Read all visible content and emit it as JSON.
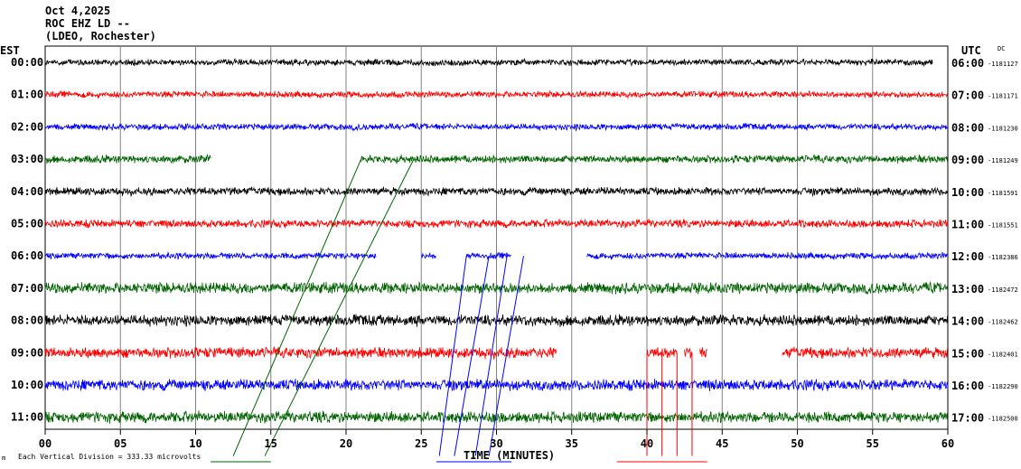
{
  "header": {
    "date": "Oct 4,2025",
    "station": "ROC EHZ LD --",
    "network": "(LDEO, Rochester)"
  },
  "labels": {
    "left_zone": "EST",
    "right_zone": "UTC",
    "dc": "DC",
    "time_axis": "TIME (MINUTES)",
    "scale_note": "Each Vertical Division =  333.33 microvolts"
  },
  "colors": {
    "black": "#000000",
    "red": "#ff0000",
    "blue": "#0000ff",
    "green": "#006400",
    "grid": "#808080"
  },
  "chart_data": {
    "type": "line",
    "title": "",
    "xlabel": "TIME (MINUTES)",
    "ylabel": "",
    "xlim": [
      0,
      60
    ],
    "x_ticks": [
      "00",
      "05",
      "10",
      "15",
      "20",
      "25",
      "30",
      "35",
      "40",
      "45",
      "50",
      "55",
      "60"
    ],
    "grid": true,
    "rows": [
      {
        "est": "00:00",
        "utc": "06:00",
        "dc": "-1181127",
        "color": "black",
        "segments": [
          [
            0,
            59
          ]
        ],
        "amp": 4
      },
      {
        "est": "01:00",
        "utc": "07:00",
        "dc": "-1181171",
        "color": "red",
        "segments": [
          [
            0,
            60
          ]
        ],
        "amp": 4
      },
      {
        "est": "02:00",
        "utc": "08:00",
        "dc": "-1181230",
        "color": "blue",
        "segments": [
          [
            0,
            60
          ]
        ],
        "amp": 4
      },
      {
        "est": "03:00",
        "utc": "09:00",
        "dc": "-1181249",
        "color": "green",
        "segments": [
          [
            0,
            11
          ],
          [
            21,
            60
          ]
        ],
        "amp": 5
      },
      {
        "est": "04:00",
        "utc": "10:00",
        "dc": "-1181591",
        "color": "black",
        "segments": [
          [
            0,
            60
          ]
        ],
        "amp": 5
      },
      {
        "est": "05:00",
        "utc": "11:00",
        "dc": "-1181551",
        "color": "red",
        "segments": [
          [
            0,
            60
          ]
        ],
        "amp": 5
      },
      {
        "est": "06:00",
        "utc": "12:00",
        "dc": "-1182386",
        "color": "blue",
        "segments": [
          [
            0,
            22
          ],
          [
            25,
            26
          ],
          [
            28,
            31
          ],
          [
            36,
            60
          ]
        ],
        "amp": 4
      },
      {
        "est": "07:00",
        "utc": "13:00",
        "dc": "-1182472",
        "color": "green",
        "segments": [
          [
            0,
            60
          ]
        ],
        "amp": 7
      },
      {
        "est": "08:00",
        "utc": "14:00",
        "dc": "-1182462",
        "color": "black",
        "segments": [
          [
            0,
            60
          ]
        ],
        "amp": 7
      },
      {
        "est": "09:00",
        "utc": "15:00",
        "dc": "-1182401",
        "color": "red",
        "segments": [
          [
            0,
            34
          ],
          [
            40,
            42
          ],
          [
            42.5,
            43
          ],
          [
            43.5,
            44
          ],
          [
            49,
            60
          ]
        ],
        "amp": 7
      },
      {
        "est": "10:00",
        "utc": "16:00",
        "dc": "-1182290",
        "color": "blue",
        "segments": [
          [
            0,
            60
          ]
        ],
        "amp": 7
      },
      {
        "est": "11:00",
        "utc": "17:00",
        "dc": "-1182500",
        "color": "green",
        "segments": [
          [
            0,
            60
          ]
        ],
        "amp": 7
      }
    ]
  }
}
